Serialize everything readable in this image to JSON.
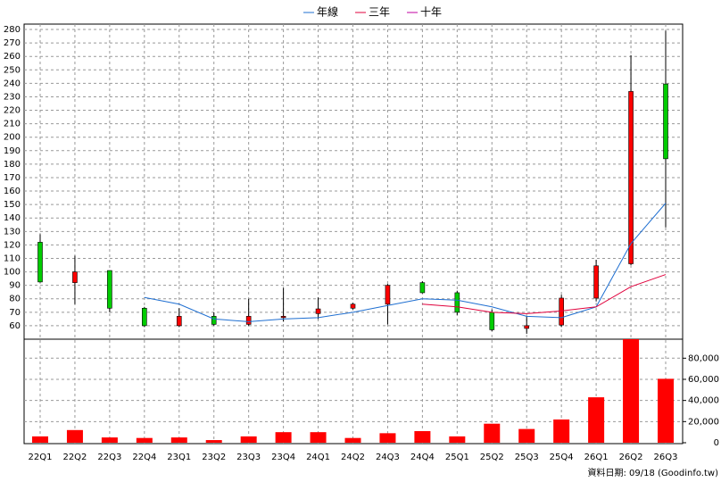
{
  "chart_data": {
    "type": "candlestick",
    "categories": [
      "22Q1",
      "22Q2",
      "22Q3",
      "22Q4",
      "23Q1",
      "23Q2",
      "23Q3",
      "23Q4",
      "24Q1",
      "24Q2",
      "24Q3",
      "24Q4",
      "25Q1",
      "25Q2",
      "25Q3",
      "25Q4",
      "26Q1",
      "26Q2",
      "26Q3"
    ],
    "open": [
      122,
      92,
      101,
      73,
      60,
      67,
      61,
      66,
      69,
      73,
      76,
      92,
      84.5,
      70,
      58,
      60.5,
      80.5,
      106,
      239.5
    ],
    "high": [
      128,
      112,
      101,
      74,
      73,
      70,
      80,
      88,
      81,
      77,
      91,
      93,
      86,
      72,
      67,
      83,
      109,
      261,
      279
    ],
    "low": [
      92,
      76,
      70,
      59,
      59,
      60,
      60,
      63,
      65,
      72,
      61,
      84,
      68,
      56,
      54,
      59,
      78,
      105,
      133
    ],
    "close": [
      92.5,
      100,
      73,
      60,
      67,
      61,
      67,
      67,
      72.5,
      76,
      90,
      84.5,
      70,
      57,
      60,
      80.5,
      104.5,
      234,
      184
    ],
    "up_color": "#ff0000",
    "down_color": "#00cc00",
    "series": [
      {
        "name": "年線",
        "color": "#1f6fd1",
        "values": [
          null,
          null,
          null,
          81,
          76,
          65,
          63,
          65,
          66,
          70,
          75,
          80,
          79,
          74,
          67,
          66,
          74,
          121,
          151
        ]
      },
      {
        "name": "三年",
        "color": "#e0003c",
        "values": [
          null,
          null,
          null,
          null,
          null,
          null,
          null,
          null,
          null,
          null,
          null,
          76,
          74,
          70,
          69,
          71,
          74,
          89,
          98
        ]
      },
      {
        "name": "十年",
        "color": "#c000a0",
        "values": [
          null,
          null,
          null,
          null,
          null,
          null,
          null,
          null,
          null,
          null,
          null,
          null,
          null,
          null,
          null,
          null,
          null,
          null,
          null
        ]
      }
    ],
    "volume": {
      "color": "#ff0000",
      "axis": "y2",
      "values": [
        6000,
        12000,
        5000,
        4500,
        5000,
        2500,
        6000,
        10000,
        10000,
        4500,
        9000,
        11000,
        6000,
        18000,
        13000,
        22000,
        43000,
        98000,
        60500
      ]
    },
    "ylim": [
      50,
      284
    ],
    "yticks": [
      60,
      70,
      80,
      90,
      100,
      110,
      120,
      130,
      140,
      150,
      160,
      170,
      180,
      190,
      200,
      210,
      220,
      230,
      240,
      250,
      260,
      270,
      280
    ],
    "y2lim": [
      0,
      98000
    ],
    "y2ticks": [
      0,
      {
        "value": 20000,
        "label": "20,000"
      },
      {
        "value": 40000,
        "label": "40,000"
      },
      {
        "value": 60000,
        "label": "60,000"
      },
      {
        "value": 80000,
        "label": "80,000"
      }
    ],
    "grid": true,
    "footnote": "資料日期: 09/18 (Goodinfo.tw)"
  }
}
